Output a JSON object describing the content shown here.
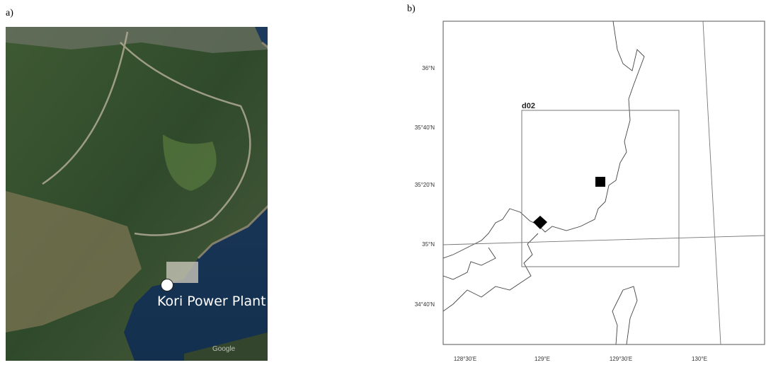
{
  "panels": {
    "a": {
      "label": "a)",
      "site_label": "Kori Power Plant",
      "watermark": "Google"
    },
    "b": {
      "label": "b)",
      "domain_label": "d02",
      "lat_labels": [
        "36°N",
        "35°40'N",
        "35°20'N",
        "35°N",
        "34°40'N"
      ],
      "lon_labels": [
        "128°30'E",
        "129°E",
        "129°30'E",
        "130°E"
      ]
    }
  }
}
